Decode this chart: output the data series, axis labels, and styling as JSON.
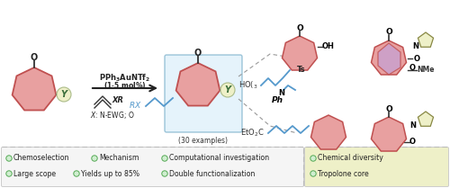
{
  "bg_color": "#ffffff",
  "tropone_fill": "#e8a0a0",
  "tropone_stroke": "#c05050",
  "y_label_bg": "#eef0c8",
  "bottom_right_bg": "#eef0c8",
  "purple_fill": "#c8a0d0",
  "blue_chain": "#5599cc",
  "bullet_items_left_row1": [
    "Chemoselection",
    "Mechanism",
    "Computational investigation"
  ],
  "bullet_items_left_row2": [
    "Large scope",
    "Yields up to 85%",
    "Double functionalization"
  ],
  "bullet_items_right_row1": [
    "Chemical diversity"
  ],
  "bullet_items_right_row2": [
    "Tropolone core"
  ]
}
